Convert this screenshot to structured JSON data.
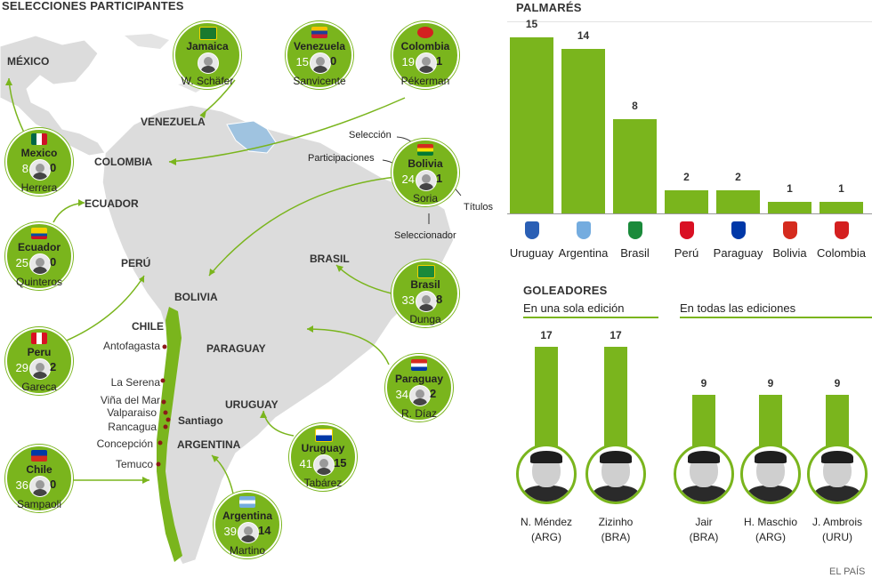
{
  "header": {
    "title": "SELECCIONES PARTICIPANTES",
    "palmares_title": "PALMARÉS",
    "goleadores_title": "GOLEADORES",
    "sub_single": "En una sola edición",
    "sub_all": "En todas las ediciones",
    "credit": "EL PAÍS"
  },
  "teams": [
    {
      "name": "Jamaica",
      "participations": "",
      "titles": "",
      "coach": "W. Schäfer"
    },
    {
      "name": "Venezuela",
      "participations": "15",
      "titles": "0",
      "coach": "Sanvicente"
    },
    {
      "name": "Colombia",
      "participations": "19",
      "titles": "1",
      "coach": "Pékerman"
    },
    {
      "name": "Mexico",
      "participations": "8",
      "titles": "0",
      "coach": "Herrera"
    },
    {
      "name": "Bolivia",
      "participations": "24",
      "titles": "1",
      "coach": "Soria"
    },
    {
      "name": "Ecuador",
      "participations": "25",
      "titles": "0",
      "coach": "Quinteros"
    },
    {
      "name": "Brasil",
      "participations": "33",
      "titles": "8",
      "coach": "Dunga"
    },
    {
      "name": "Peru",
      "participations": "29",
      "titles": "2",
      "coach": "Gareca"
    },
    {
      "name": "Paraguay",
      "participations": "34",
      "titles": "2",
      "coach": "R. Díaz"
    },
    {
      "name": "Uruguay",
      "participations": "41",
      "titles": "15",
      "coach": "Tabárez"
    },
    {
      "name": "Chile",
      "participations": "36",
      "titles": "0",
      "coach": "Sampaoli"
    },
    {
      "name": "Argentina",
      "participations": "39",
      "titles": "14",
      "coach": "Martino"
    }
  ],
  "legend": {
    "seleccion": "Selección",
    "participaciones": "Participaciones",
    "titulos": "Títulos",
    "seleccionador": "Seleccionador"
  },
  "map_labels": {
    "mexico": "MÉXICO",
    "venezuela": "VENEZUELA",
    "colombia": "COLOMBIA",
    "ecuador": "ECUADOR",
    "peru": "PERÚ",
    "brasil": "BRASIL",
    "bolivia": "BOLIVIA",
    "chile": "CHILE",
    "paraguay": "PARAGUAY",
    "uruguay": "URUGUAY",
    "argentina": "ARGENTINA"
  },
  "cities": [
    "Antofagasta",
    "La Serena",
    "Viña del Mar",
    "Valparaiso",
    "Rancagua",
    "Concepción",
    "Temuco"
  ],
  "capital": "Santiago",
  "chart_data": [
    {
      "type": "bar",
      "title": "PALMARÉS",
      "categories": [
        "Uruguay",
        "Argentina",
        "Brasil",
        "Perú",
        "Paraguay",
        "Bolivia",
        "Colombia"
      ],
      "values": [
        15,
        14,
        8,
        2,
        2,
        1,
        1
      ],
      "ylim": [
        0,
        15
      ]
    },
    {
      "type": "bar",
      "title": "GOLEADORES",
      "series": [
        {
          "name": "En una sola edición",
          "categories": [
            "N. Méndez (ARG)",
            "Zizinho (BRA)"
          ],
          "values": [
            17,
            17
          ]
        },
        {
          "name": "En todas las ediciones",
          "categories": [
            "Jair (BRA)",
            "H. Maschio (ARG)",
            "J. Ambrois (URU)"
          ],
          "values": [
            9,
            9,
            9
          ]
        }
      ],
      "ylim": [
        0,
        17
      ]
    }
  ],
  "scorers": [
    {
      "name": "N. Méndez",
      "country": "(ARG)",
      "value": "17"
    },
    {
      "name": "Zizinho",
      "country": "(BRA)",
      "value": "17"
    },
    {
      "name": "Jair",
      "country": "(BRA)",
      "value": "9"
    },
    {
      "name": "H. Maschio",
      "country": "(ARG)",
      "value": "9"
    },
    {
      "name": "J. Ambrois",
      "country": "(URU)",
      "value": "9"
    }
  ],
  "colors": {
    "accent": "#7ab51d",
    "land": "#d9d9d9",
    "venezuela_highlight": "#9fc3e0"
  }
}
